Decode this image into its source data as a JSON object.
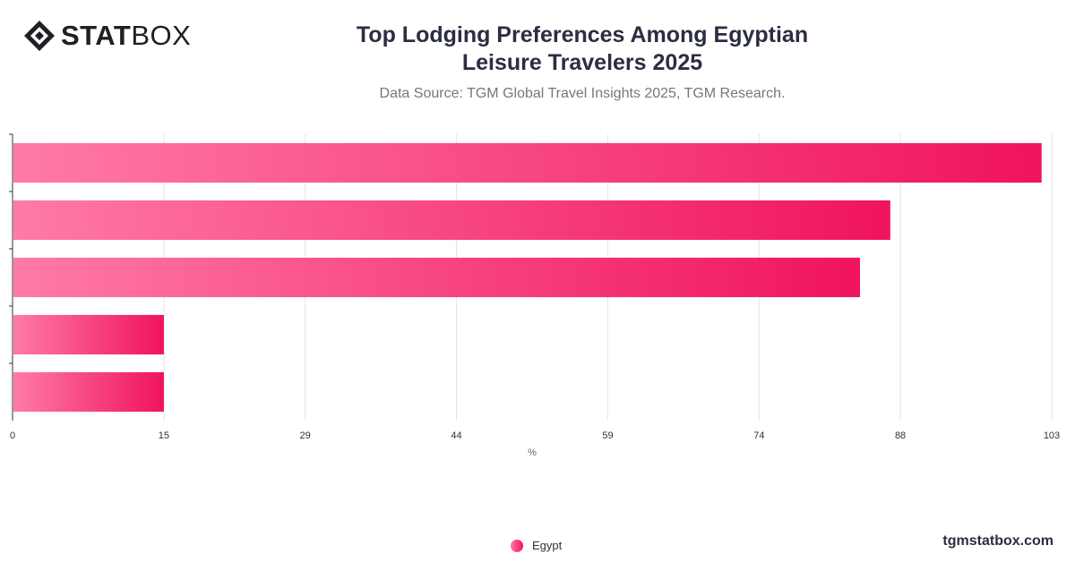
{
  "brand": {
    "logo_bold": "STAT",
    "logo_light": "BOX",
    "website": "tgmstatbox.com"
  },
  "header": {
    "title": "Top Lodging Preferences Among Egyptian Leisure Travelers 2025",
    "subtitle": "Data Source: TGM Global Travel Insights 2025, TGM Research."
  },
  "colors": {
    "bar_start": "#ff7aa8",
    "bar_end": "#f0135e",
    "grid": "#e6e6e6",
    "axis": "#333333"
  },
  "chart_data": {
    "type": "bar",
    "orientation": "horizontal",
    "categories": [
      "",
      "",
      "",
      "",
      ""
    ],
    "series": [
      {
        "name": "Egypt",
        "values": [
          102,
          87,
          84,
          15,
          15
        ]
      }
    ],
    "xlabel": "%",
    "ylabel": "",
    "xlim": [
      0,
      103
    ],
    "xticks": [
      0,
      15,
      29,
      44,
      59,
      74,
      88,
      103
    ],
    "grid": true,
    "legend": "bottom-center"
  }
}
